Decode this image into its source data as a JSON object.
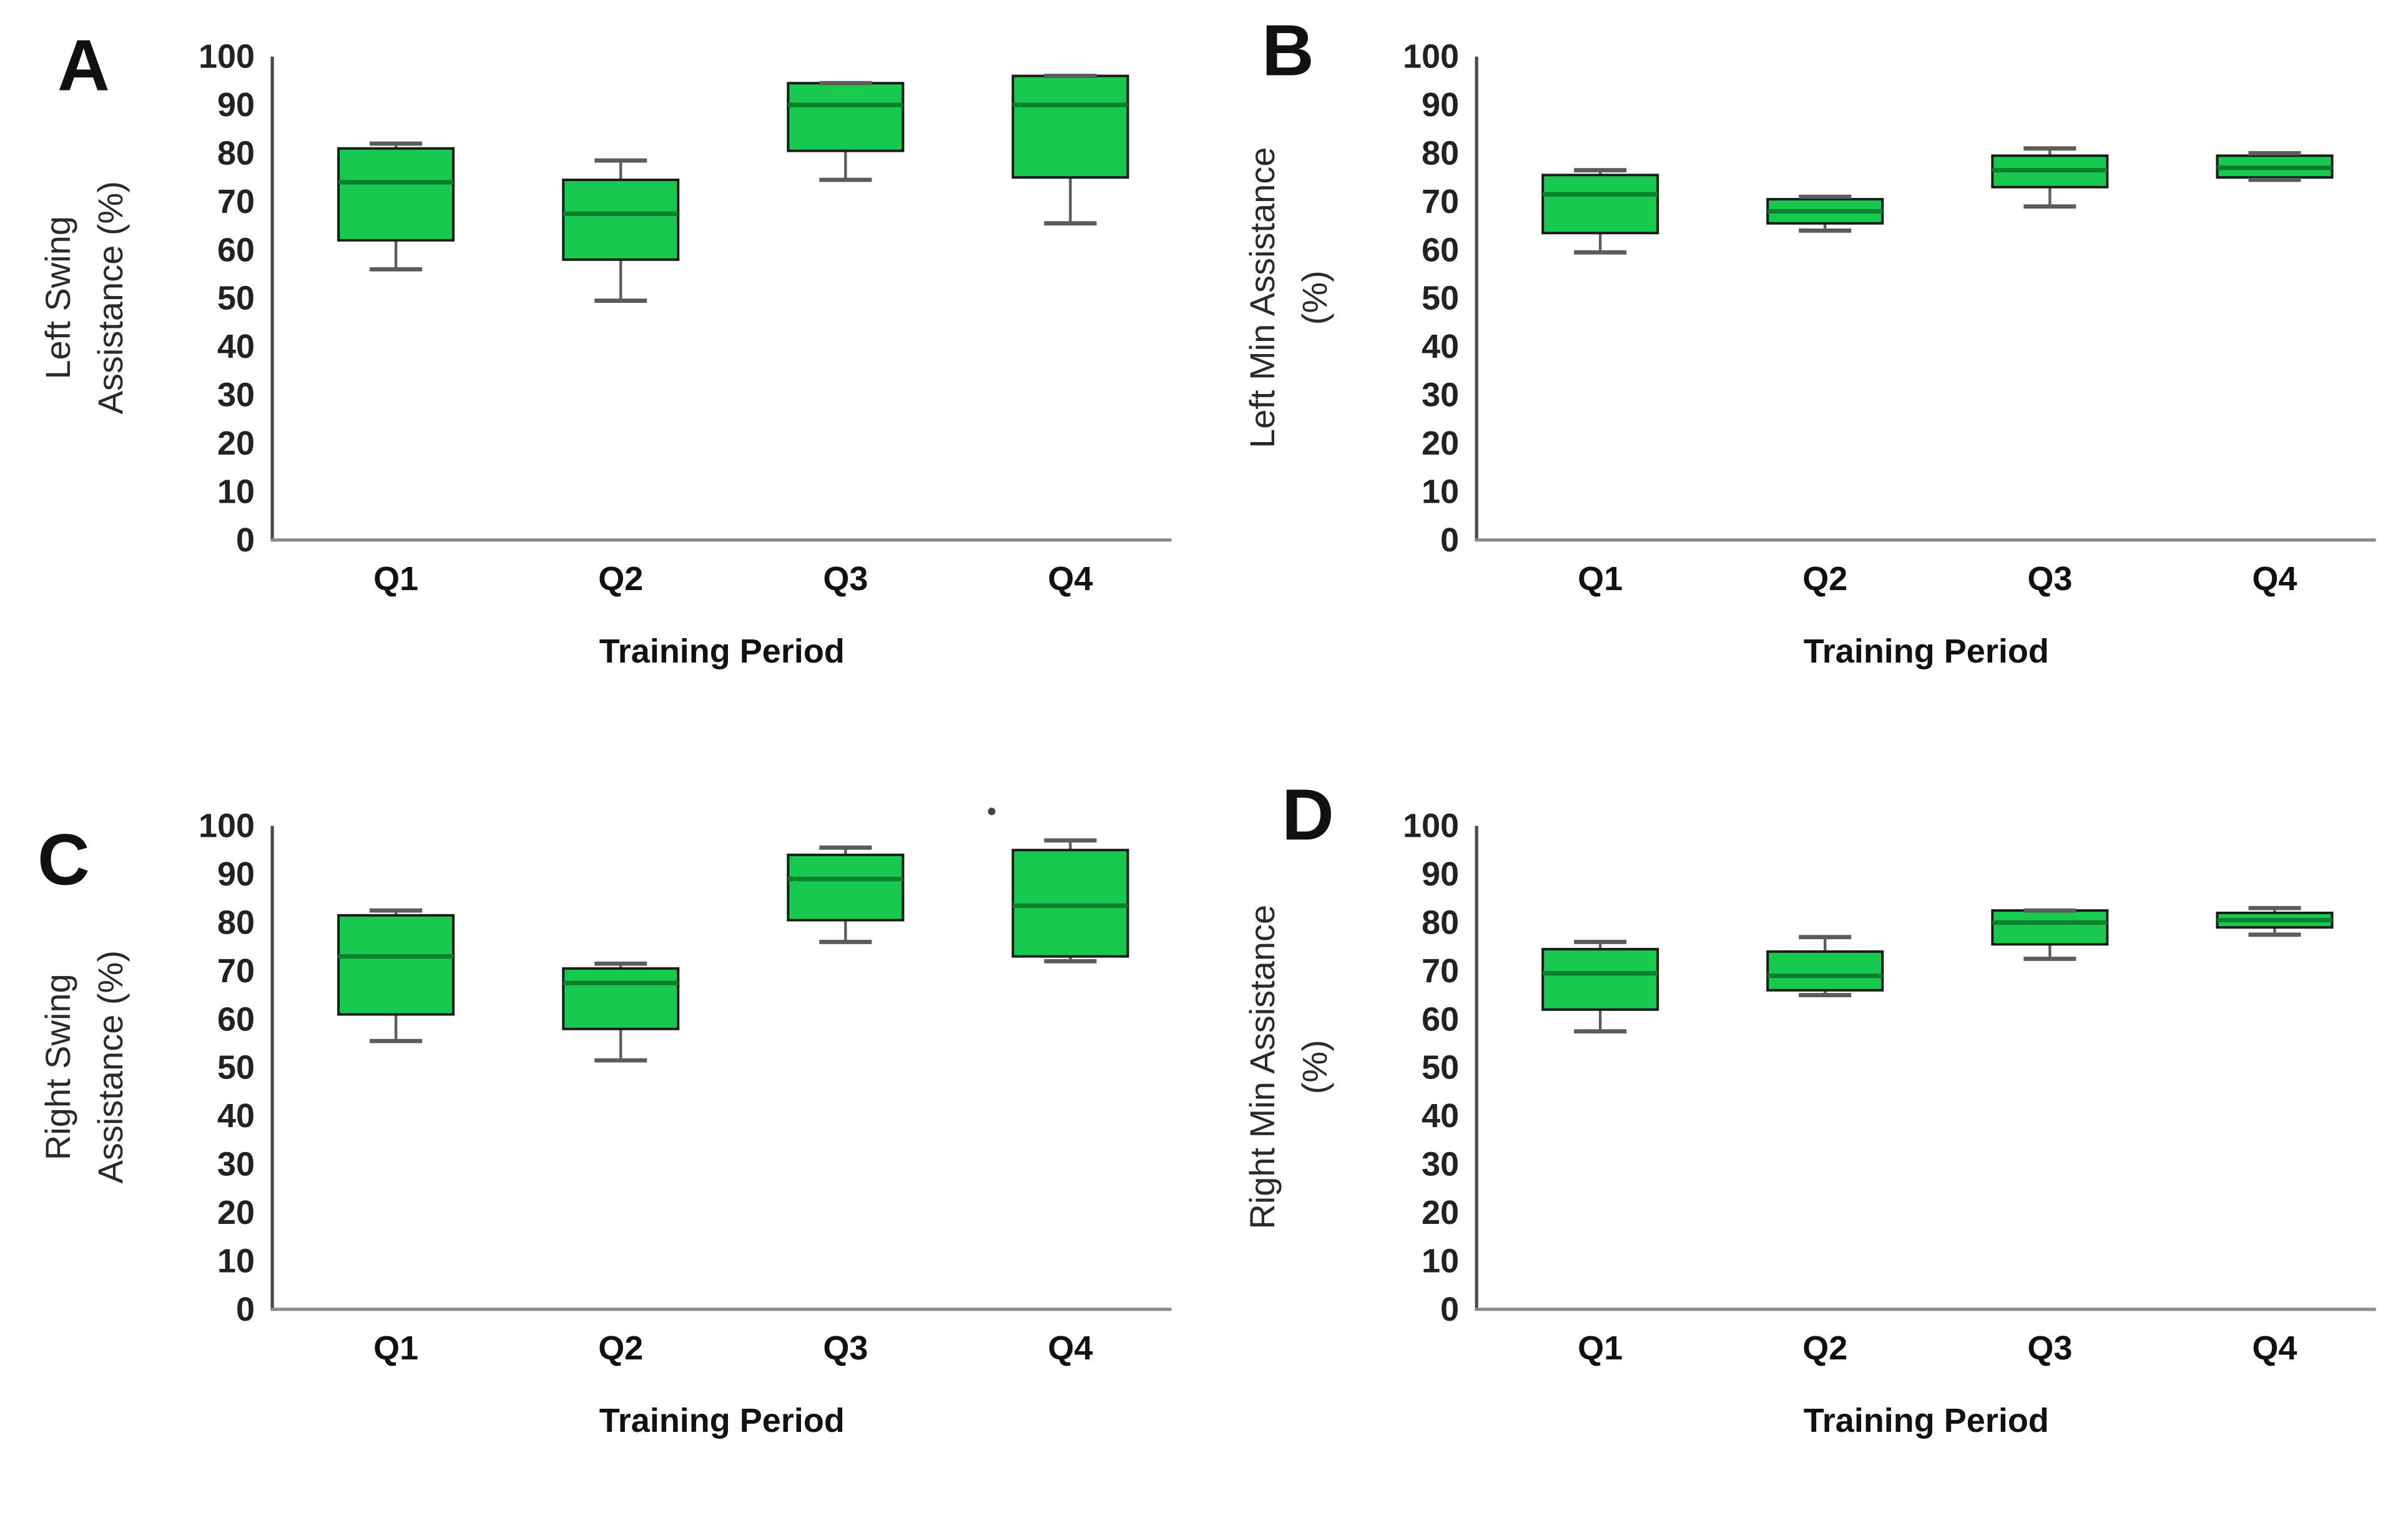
{
  "figure_name": "Four-panel box plot figure of robotic gait assistance by training period",
  "style": {
    "background": "#ffffff",
    "box_fill": "#17c94e",
    "box_stroke": "#1a1a1a",
    "median_color": "#0b7f2e",
    "whisker_color": "#5c5c5c",
    "y_axis_color": "#4a4a4a",
    "x_axis_color": "#8a8a8a",
    "text_color": "#1c1c1c"
  },
  "chart_data": [
    {
      "type": "box",
      "panel_label": "A",
      "ylabel_lines": [
        "Left Swing",
        "Assistance (%)"
      ],
      "xlabel": "Training Period",
      "categories": [
        "Q1",
        "Q2",
        "Q3",
        "Q4"
      ],
      "ylim": [
        0,
        100
      ],
      "ytick_step": 10,
      "grid": false,
      "boxes": [
        {
          "category": "Q1",
          "min": 56,
          "q1": 62,
          "median": 74,
          "q3": 81,
          "max": 82
        },
        {
          "category": "Q2",
          "min": 49.5,
          "q1": 58,
          "median": 67.5,
          "q3": 74.5,
          "max": 78.5
        },
        {
          "category": "Q3",
          "min": 74.5,
          "q1": 80.5,
          "median": 90,
          "q3": 94.5,
          "max": 94.5
        },
        {
          "category": "Q4",
          "min": 65.5,
          "q1": 75,
          "median": 90,
          "q3": 96,
          "max": 96
        }
      ]
    },
    {
      "type": "box",
      "panel_label": "B",
      "ylabel_lines": [
        "Left Min Assistance",
        "(%)"
      ],
      "xlabel": "Training Period",
      "categories": [
        "Q1",
        "Q2",
        "Q3",
        "Q4"
      ],
      "ylim": [
        0,
        100
      ],
      "ytick_step": 10,
      "grid": false,
      "boxes": [
        {
          "category": "Q1",
          "min": 59.5,
          "q1": 63.5,
          "median": 71.5,
          "q3": 75.5,
          "max": 76.5
        },
        {
          "category": "Q2",
          "min": 64,
          "q1": 65.5,
          "median": 68,
          "q3": 70.5,
          "max": 71
        },
        {
          "category": "Q3",
          "min": 69,
          "q1": 73,
          "median": 76.5,
          "q3": 79.5,
          "max": 81
        },
        {
          "category": "Q4",
          "min": 74.5,
          "q1": 75,
          "median": 77,
          "q3": 79.5,
          "max": 80
        }
      ]
    },
    {
      "type": "box",
      "panel_label": "C",
      "ylabel_lines": [
        "Right Swing",
        "Assistance (%)"
      ],
      "xlabel": "Training Period",
      "categories": [
        "Q1",
        "Q2",
        "Q3",
        "Q4"
      ],
      "ylim": [
        0,
        100
      ],
      "ytick_step": 10,
      "grid": false,
      "boxes": [
        {
          "category": "Q1",
          "min": 55.5,
          "q1": 61,
          "median": 73,
          "q3": 81.5,
          "max": 82.5
        },
        {
          "category": "Q2",
          "min": 51.5,
          "q1": 58,
          "median": 67.5,
          "q3": 70.5,
          "max": 71.5
        },
        {
          "category": "Q3",
          "min": 76,
          "q1": 80.5,
          "median": 89,
          "q3": 94,
          "max": 95.5
        },
        {
          "category": "Q4",
          "min": 72,
          "q1": 73,
          "median": 83.5,
          "q3": 95,
          "max": 97
        }
      ],
      "stray_dot": {
        "near_category": "Q4",
        "value": 103,
        "x_offset_fraction": -0.35
      }
    },
    {
      "type": "box",
      "panel_label": "D",
      "ylabel_lines": [
        "Right Min Assistance",
        "(%)"
      ],
      "xlabel": "Training Period",
      "categories": [
        "Q1",
        "Q2",
        "Q3",
        "Q4"
      ],
      "ylim": [
        0,
        100
      ],
      "ytick_step": 10,
      "grid": false,
      "boxes": [
        {
          "category": "Q1",
          "min": 57.5,
          "q1": 62,
          "median": 69.5,
          "q3": 74.5,
          "max": 76
        },
        {
          "category": "Q2",
          "min": 65,
          "q1": 66,
          "median": 69,
          "q3": 74,
          "max": 77
        },
        {
          "category": "Q3",
          "min": 72.5,
          "q1": 75.5,
          "median": 80,
          "q3": 82.5,
          "max": 82.5
        },
        {
          "category": "Q4",
          "min": 77.5,
          "q1": 79,
          "median": 80.5,
          "q3": 82,
          "max": 83
        }
      ]
    }
  ]
}
